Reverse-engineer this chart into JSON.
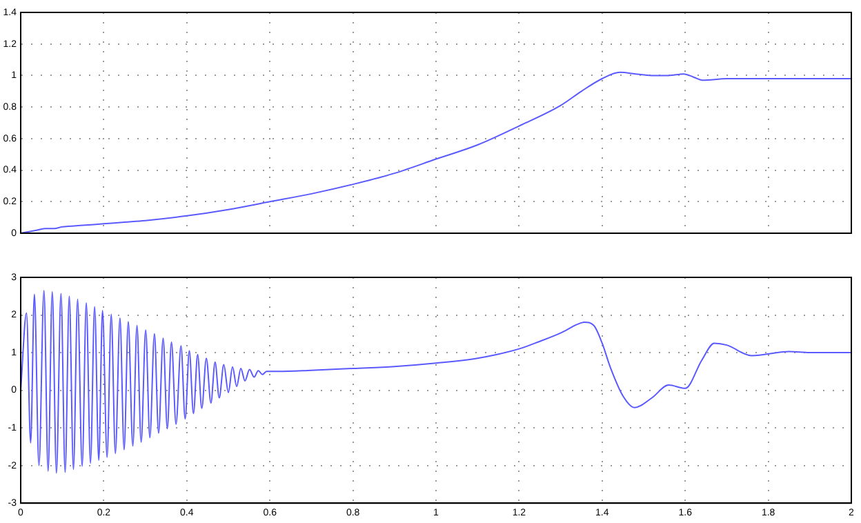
{
  "chart_data": [
    {
      "type": "line",
      "xlim": [
        0,
        2
      ],
      "xticks": [
        0,
        0.2,
        0.4,
        0.6,
        0.8,
        1,
        1.2,
        1.4,
        1.6,
        1.8,
        2
      ],
      "ylim": [
        0,
        1.4
      ],
      "yticks": [
        0,
        0.2,
        0.4,
        0.6,
        0.8,
        1,
        1.2,
        1.4
      ],
      "grid": true,
      "tick_labels": "y",
      "line_style": "solid",
      "marker": "none",
      "series": [
        {
          "color": "#5a5aff",
          "x": [
            0,
            0.02,
            0.04,
            0.06,
            0.08,
            0.1,
            0.15,
            0.2,
            0.25,
            0.3,
            0.4,
            0.5,
            0.6,
            0.7,
            0.8,
            0.9,
            1,
            1.1,
            1.2,
            1.3,
            1.35,
            1.4,
            1.443,
            1.48,
            1.519,
            1.56,
            1.596,
            1.62,
            1.642,
            1.7,
            1.8,
            1.9,
            2
          ],
          "values": [
            0,
            0.01,
            0.02,
            0.03,
            0.03,
            0.04,
            0.05,
            0.06,
            0.07,
            0.08,
            0.11,
            0.15,
            0.2,
            0.25,
            0.31,
            0.38,
            0.47,
            0.56,
            0.68,
            0.81,
            0.9,
            0.98,
            1.02,
            1.01,
            1.0,
            1.0,
            1.01,
            0.99,
            0.97,
            0.98,
            0.98,
            0.98,
            0.98
          ]
        }
      ]
    },
    {
      "type": "line",
      "xlim": [
        0,
        2
      ],
      "xticks": [
        0,
        0.2,
        0.4,
        0.6,
        0.8,
        1,
        1.2,
        1.4,
        1.6,
        1.8,
        2
      ],
      "ylim": [
        -3,
        3
      ],
      "yticks": [
        -3,
        -2,
        -1,
        0,
        1,
        2,
        3
      ],
      "grid": true,
      "line_style": "solid",
      "marker": "none",
      "series": [
        {
          "color": "#5a5aff",
          "x": [
            0,
            0.014,
            0.024,
            0.033,
            0.044,
            0.056,
            0.066,
            0.076,
            0.086,
            0.097,
            0.107,
            0.117,
            0.127,
            0.137,
            0.148,
            0.158,
            0.168,
            0.178,
            0.188,
            0.197,
            0.208,
            0.218,
            0.228,
            0.239,
            0.249,
            0.259,
            0.27,
            0.28,
            0.29,
            0.301,
            0.311,
            0.322,
            0.332,
            0.343,
            0.353,
            0.363,
            0.374,
            0.386,
            0.396,
            0.406,
            0.416,
            0.426,
            0.436,
            0.447,
            0.458,
            0.468,
            0.478,
            0.489,
            0.5,
            0.51,
            0.52,
            0.53,
            0.54,
            0.551,
            0.562,
            0.572,
            0.582,
            0.592,
            0.62,
            0.7,
            0.8,
            0.9,
            1,
            1.1,
            1.2,
            1.25,
            1.3,
            1.34,
            1.357,
            1.38,
            1.4,
            1.42,
            1.45,
            1.478,
            1.52,
            1.56,
            1.6,
            1.64,
            1.67,
            1.7,
            1.76,
            1.85,
            1.9,
            2
          ],
          "values": [
            0,
            2.05,
            -1.4,
            2.55,
            -2.0,
            2.65,
            -2.15,
            2.62,
            -2.2,
            2.57,
            -2.18,
            2.5,
            -2.1,
            2.42,
            -2.02,
            2.32,
            -1.94,
            2.22,
            -1.86,
            2.12,
            -1.78,
            2.02,
            -1.68,
            1.92,
            -1.58,
            1.82,
            -1.48,
            1.72,
            -1.38,
            1.6,
            -1.26,
            1.5,
            -1.14,
            1.38,
            -1.02,
            1.28,
            -0.9,
            1.18,
            -0.76,
            1.05,
            -0.62,
            0.95,
            -0.48,
            0.85,
            -0.34,
            0.75,
            -0.2,
            0.68,
            -0.06,
            0.62,
            0.1,
            0.58,
            0.25,
            0.55,
            0.35,
            0.52,
            0.42,
            0.5,
            0.5,
            0.53,
            0.58,
            0.63,
            0.72,
            0.85,
            1.1,
            1.3,
            1.52,
            1.75,
            1.81,
            1.72,
            1.25,
            0.6,
            -0.15,
            -0.46,
            -0.2,
            0.14,
            0.05,
            0.8,
            1.25,
            1.2,
            0.92,
            1.03,
            1.0,
            1.0
          ]
        }
      ]
    }
  ]
}
